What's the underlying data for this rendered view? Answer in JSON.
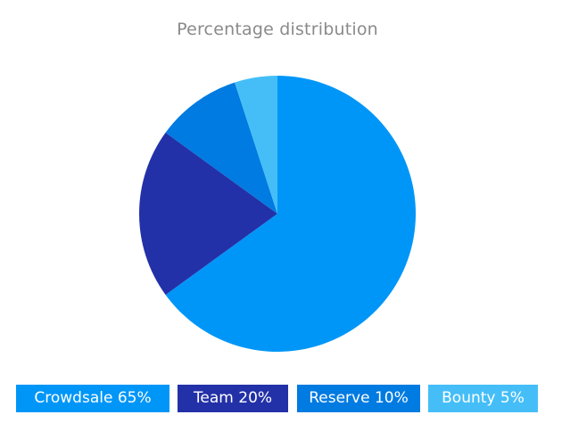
{
  "chart_data": {
    "type": "pie",
    "title": "Percentage distribution",
    "slices": [
      {
        "label": "Crowdsale 65%",
        "value": 65,
        "color": "#0096f8"
      },
      {
        "label": "Team 20%",
        "value": 20,
        "color": "#2331a8"
      },
      {
        "label": "Reserve 10%",
        "value": 10,
        "color": "#007be1"
      },
      {
        "label": "Bounty 5%",
        "value": 5,
        "color": "#45bef8"
      }
    ],
    "legend_position": "bottom"
  }
}
